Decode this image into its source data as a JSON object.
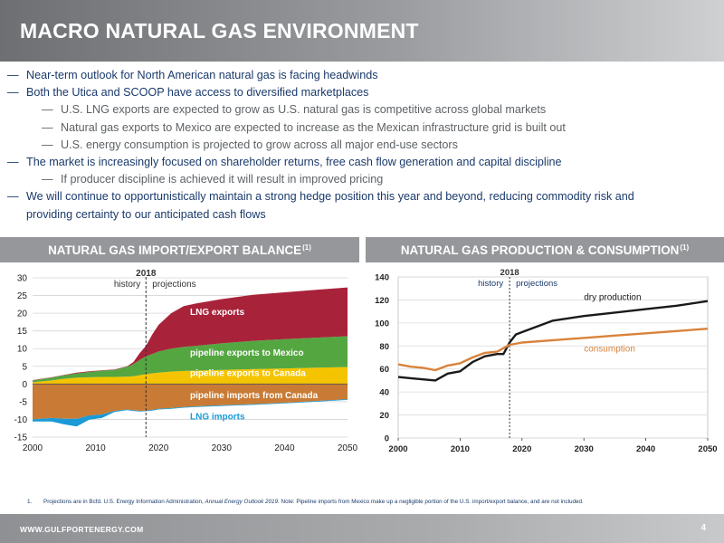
{
  "header": {
    "title": "MACRO NATURAL GAS ENVIRONMENT"
  },
  "bullets": [
    {
      "text": "Near-term outlook for North American natural gas is facing headwinds",
      "level": 0
    },
    {
      "text": "Both the Utica and SCOOP have access to diversified marketplaces",
      "level": 0
    },
    {
      "text": "U.S. LNG exports are expected to grow as U.S. natural gas is competitive across global markets",
      "level": 1
    },
    {
      "text": "Natural gas exports to Mexico are expected to increase as the Mexican infrastructure grid is built out",
      "level": 1
    },
    {
      "text": "U.S. energy consumption is projected to grow across all major end-use sectors",
      "level": 1
    },
    {
      "text": "The market is increasingly focused on shareholder returns, free cash flow generation and capital discipline",
      "level": 0
    },
    {
      "text": "If producer discipline is achieved it will result in improved pricing",
      "level": 1
    },
    {
      "text": "We will continue to opportunistically maintain a strong hedge position this year and beyond, reducing commodity risk and",
      "level": 0
    },
    {
      "text": "providing certainty to our anticipated cash flows",
      "level": 0,
      "continuation": true
    }
  ],
  "sections": {
    "left_title": "NATURAL GAS IMPORT/EXPORT BALANCE",
    "left_sup": "(1)",
    "right_title": "NATURAL GAS PRODUCTION & CONSUMPTION",
    "right_sup": "(1)"
  },
  "chart_data": [
    {
      "type": "area",
      "title": "",
      "x": [
        2000,
        2003,
        2005,
        2007,
        2009,
        2011,
        2013,
        2015,
        2016,
        2017,
        2018,
        2019,
        2020,
        2022,
        2024,
        2026,
        2030,
        2035,
        2040,
        2045,
        2050
      ],
      "xlim": [
        2000,
        2050
      ],
      "ylim": [
        -15,
        30
      ],
      "xticks": [
        2000,
        2010,
        2020,
        2030,
        2040,
        2050
      ],
      "yticks": [
        -15,
        -10,
        -5,
        0,
        5,
        10,
        15,
        20,
        25,
        30
      ],
      "grid": true,
      "divider": {
        "x": 2018,
        "label": "2018",
        "left_label": "history",
        "right_label": "projections"
      },
      "positive_series": [
        {
          "name": "pipeline exports to Canada",
          "color": "#f5c400",
          "values": [
            0.5,
            1.0,
            1.5,
            1.8,
            1.9,
            2.0,
            2.0,
            2.1,
            2.2,
            2.5,
            2.8,
            3.0,
            3.2,
            3.5,
            3.7,
            3.8,
            4.0,
            4.2,
            4.4,
            4.6,
            4.8
          ]
        },
        {
          "name": "pipeline exports to Mexico",
          "color": "#54a641",
          "values": [
            0.5,
            0.8,
            1.0,
            1.2,
            1.5,
            1.8,
            2.0,
            2.8,
            3.4,
            4.3,
            5.0,
            5.5,
            6.0,
            6.5,
            6.8,
            7.0,
            7.5,
            8.0,
            8.3,
            8.5,
            8.7
          ]
        },
        {
          "name": "LNG exports",
          "color": "#a8233a",
          "values": [
            0.1,
            0.1,
            0.1,
            0.2,
            0.2,
            0.1,
            0.1,
            0.1,
            0.6,
            1.9,
            3.0,
            5.5,
            7.5,
            10.0,
            11.5,
            12.0,
            12.5,
            13.0,
            13.2,
            13.5,
            13.8
          ]
        }
      ],
      "negative_series": [
        {
          "name": "pipeline imports from Canada",
          "color": "#c97b35",
          "values": [
            -10.0,
            -9.6,
            -9.8,
            -9.8,
            -8.9,
            -8.6,
            -7.6,
            -7.2,
            -7.4,
            -7.6,
            -7.5,
            -7.3,
            -7.0,
            -6.8,
            -6.5,
            -6.3,
            -6.0,
            -5.7,
            -5.3,
            -4.8,
            -4.3
          ]
        },
        {
          "name": "LNG imports",
          "color": "#1a9ad6",
          "values": [
            -0.6,
            -1.0,
            -1.6,
            -2.2,
            -1.2,
            -1.0,
            -0.3,
            -0.2,
            -0.2,
            -0.2,
            -0.2,
            -0.2,
            -0.2,
            -0.2,
            -0.2,
            -0.2,
            -0.2,
            -0.2,
            -0.2,
            -0.2,
            -0.2
          ]
        }
      ],
      "annotations": [
        "LNG exports",
        "pipeline exports to Mexico",
        "pipeline exports to Canada",
        "pipeline imports from Canada",
        "LNG imports"
      ]
    },
    {
      "type": "line",
      "title": "",
      "xlim": [
        2000,
        2050
      ],
      "ylim": [
        0,
        140
      ],
      "xticks": [
        2000,
        2010,
        2020,
        2030,
        2040,
        2050
      ],
      "yticks": [
        0,
        20,
        40,
        60,
        80,
        100,
        120,
        140
      ],
      "grid": true,
      "divider": {
        "x": 2018,
        "label": "2018",
        "left_label": "history",
        "right_label": "projections"
      },
      "series": [
        {
          "name": "dry production",
          "color": "#1a1a1a",
          "x": [
            2000,
            2002,
            2004,
            2006,
            2008,
            2010,
            2012,
            2014,
            2016,
            2017,
            2018,
            2019,
            2020,
            2022,
            2025,
            2030,
            2035,
            2040,
            2045,
            2050
          ],
          "values": [
            53,
            52,
            51,
            50,
            56,
            58,
            66,
            71,
            73,
            73,
            83,
            90,
            92,
            96,
            102,
            106,
            109,
            112,
            115,
            119
          ]
        },
        {
          "name": "consumption",
          "color": "#d9823a",
          "x": [
            2000,
            2002,
            2004,
            2006,
            2008,
            2010,
            2012,
            2014,
            2016,
            2018,
            2020,
            2025,
            2030,
            2035,
            2040,
            2045,
            2050
          ],
          "values": [
            64,
            62,
            61,
            59,
            63,
            65,
            70,
            74,
            75,
            81,
            83,
            85,
            87,
            89,
            91,
            93,
            95
          ]
        }
      ]
    }
  ],
  "footnote": {
    "num": "1.",
    "text_a": "Projections are in Bcfd. U.S. Energy Information Administration, ",
    "text_italic": "Annual Energy Outlook 2019",
    "text_b": ". Note: Pipeline imports from Mexico make up a negligible portion of the U.S. import/export balance, and are not included."
  },
  "footer": {
    "url": "WWW.GULFPORTENERGY.COM",
    "page": "4"
  }
}
